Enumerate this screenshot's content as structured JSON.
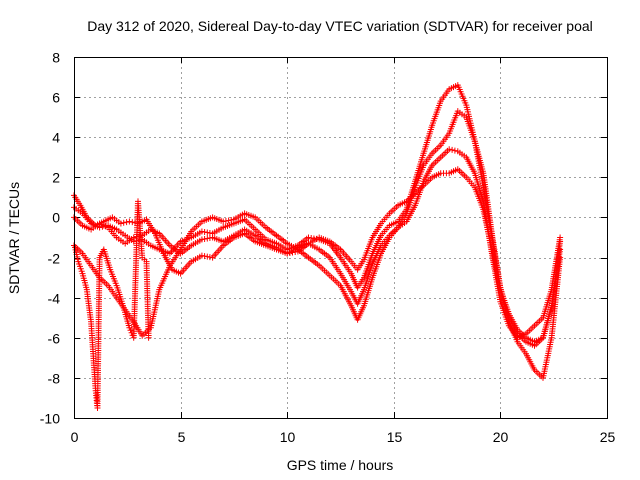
{
  "chart_data": {
    "type": "scatter",
    "title": "Day 312 of 2020, Sidereal Day-to-day VTEC variation (SDTVAR) for receiver poal",
    "xlabel": "GPS time / hours",
    "ylabel": "SDTVAR / TECUs",
    "xlim": [
      0,
      25
    ],
    "ylim": [
      -10,
      8
    ],
    "x_ticks": [
      0,
      5,
      10,
      15,
      20,
      25
    ],
    "y_ticks": [
      -10,
      -8,
      -6,
      -4,
      -2,
      0,
      2,
      4,
      6,
      8
    ],
    "grid": true,
    "marker": "plus",
    "color": "#ff0000",
    "series": [
      {
        "name": "track-a",
        "x": [
          0.0,
          0.3,
          0.6,
          1.0,
          1.4,
          1.8,
          2.2,
          2.6,
          3.0,
          3.4,
          3.8,
          4.2,
          4.6,
          5.0,
          5.5,
          6.0,
          6.5,
          7.0,
          7.5,
          8.0,
          8.5,
          9.0,
          9.5,
          10.0,
          10.5,
          11.0,
          11.5,
          12.0,
          12.5,
          13.0,
          13.3,
          13.6,
          14.0,
          14.4,
          14.8,
          15.2,
          15.6,
          16.0,
          16.4,
          16.8,
          17.2,
          17.6,
          18.0,
          18.4,
          18.8,
          19.2,
          19.6,
          20.0,
          20.4,
          20.8,
          21.2,
          21.6,
          22.0,
          22.4,
          22.8
        ],
        "y": [
          1.1,
          0.6,
          0.0,
          -0.4,
          -0.2,
          0.0,
          -0.3,
          -0.2,
          -0.3,
          -0.1,
          -0.8,
          -1.8,
          -2.6,
          -2.8,
          -2.2,
          -1.9,
          -2.0,
          -1.4,
          -1.0,
          -0.8,
          -1.2,
          -1.4,
          -1.6,
          -1.8,
          -1.5,
          -1.3,
          -1.6,
          -2.0,
          -2.8,
          -3.7,
          -4.3,
          -3.6,
          -2.3,
          -1.4,
          -0.9,
          -0.5,
          0.2,
          1.5,
          2.6,
          3.2,
          3.6,
          4.2,
          5.3,
          5.0,
          3.8,
          2.2,
          -0.8,
          -3.5,
          -5.0,
          -5.8,
          -6.2,
          -6.4,
          -6.0,
          -4.5,
          -1.6
        ]
      },
      {
        "name": "track-b",
        "x": [
          0.0,
          0.4,
          0.8,
          1.2,
          1.6,
          2.0,
          2.4,
          2.8,
          3.2,
          3.6,
          4.0,
          4.5,
          5.0,
          5.5,
          6.0,
          6.5,
          7.0,
          7.5,
          8.0,
          8.5,
          9.0,
          9.5,
          10.0,
          10.5,
          11.0,
          11.5,
          12.0,
          12.5,
          13.0,
          13.3,
          13.6,
          14.0,
          14.4,
          14.8,
          15.2,
          15.6,
          16.0,
          16.4,
          16.8,
          17.2,
          17.6,
          18.0,
          18.4,
          18.8,
          19.2,
          19.6,
          20.0,
          20.4,
          20.8,
          21.2,
          21.6,
          22.0,
          22.4,
          22.8
        ],
        "y": [
          0.5,
          0.2,
          -0.3,
          -0.5,
          -0.4,
          -0.6,
          -0.9,
          -1.2,
          -1.1,
          -1.4,
          -1.6,
          -1.8,
          -1.2,
          -1.0,
          -0.7,
          -0.8,
          -0.5,
          -0.3,
          -0.1,
          -0.6,
          -1.1,
          -1.3,
          -1.6,
          -1.4,
          -1.0,
          -1.1,
          -1.3,
          -2.0,
          -2.8,
          -3.5,
          -3.0,
          -1.8,
          -0.9,
          -0.4,
          -0.2,
          0.4,
          1.8,
          3.2,
          4.6,
          5.8,
          6.4,
          6.6,
          5.6,
          3.8,
          1.6,
          -1.0,
          -3.6,
          -5.2,
          -6.2,
          -6.8,
          -7.6,
          -8.0,
          -6.0,
          -2.0
        ]
      },
      {
        "name": "track-c",
        "x": [
          0.0,
          0.4,
          0.8,
          1.2,
          1.6,
          2.0,
          2.4,
          2.8,
          3.2,
          3.6,
          4.0,
          4.5,
          5.0,
          5.5,
          6.0,
          6.5,
          7.0,
          7.5,
          8.0,
          8.5,
          9.0,
          9.5,
          10.0,
          10.5,
          11.0,
          11.5,
          12.0,
          12.5,
          13.0,
          13.3,
          13.6,
          14.0,
          14.4,
          14.8,
          15.2,
          15.6,
          16.0,
          16.4,
          16.8,
          17.2,
          17.6,
          18.0,
          18.4,
          18.8,
          19.2,
          19.6,
          20.0,
          20.4,
          20.8,
          21.2,
          21.6,
          22.0,
          22.4,
          22.8
        ],
        "y": [
          -1.4,
          -1.8,
          -2.4,
          -3.0,
          -3.4,
          -4.0,
          -4.6,
          -5.2,
          -5.9,
          -5.5,
          -3.6,
          -2.4,
          -1.6,
          -0.7,
          -0.2,
          0.0,
          -0.2,
          -0.1,
          0.2,
          0.0,
          -0.5,
          -0.9,
          -1.3,
          -1.6,
          -2.0,
          -2.4,
          -2.9,
          -3.4,
          -4.4,
          -5.1,
          -4.4,
          -3.0,
          -1.8,
          -1.0,
          -0.5,
          -0.2,
          0.6,
          1.8,
          2.6,
          3.0,
          3.4,
          3.3,
          3.0,
          2.2,
          0.8,
          -1.8,
          -4.2,
          -5.4,
          -6.0,
          -5.8,
          -5.4,
          -5.0,
          -3.6,
          -1.0
        ]
      },
      {
        "name": "track-d",
        "x": [
          0.0,
          0.4,
          0.8,
          1.2,
          1.6,
          2.0,
          2.4,
          2.8,
          3.2,
          3.6,
          4.0,
          4.5,
          5.0,
          5.5,
          6.0,
          6.5,
          7.0,
          7.5,
          8.0,
          8.5,
          9.0,
          9.5,
          10.0,
          10.5,
          11.0,
          11.5,
          12.0,
          12.5,
          13.0,
          13.3,
          13.6,
          14.0,
          14.4,
          14.8,
          15.2,
          15.6,
          16.0,
          16.4,
          16.8,
          17.2,
          17.6,
          18.0,
          18.4,
          18.8,
          19.2,
          19.6,
          20.0,
          20.4,
          20.8,
          21.2,
          21.6,
          22.0,
          22.4,
          22.8
        ],
        "y": [
          0.0,
          -0.4,
          -0.6,
          -0.3,
          -0.5,
          -1.0,
          -1.3,
          -1.0,
          -0.9,
          -0.6,
          -0.8,
          -1.4,
          -1.8,
          -1.4,
          -1.1,
          -1.0,
          -1.2,
          -0.9,
          -0.6,
          -0.9,
          -1.3,
          -1.5,
          -1.8,
          -1.7,
          -1.3,
          -1.0,
          -1.2,
          -1.6,
          -2.2,
          -2.6,
          -2.1,
          -1.0,
          -0.3,
          0.2,
          0.6,
          0.8,
          1.2,
          1.6,
          2.0,
          2.2,
          2.2,
          2.4,
          2.0,
          1.5,
          0.4,
          -1.6,
          -3.6,
          -4.8,
          -5.6,
          -6.0,
          -6.2,
          -6.0,
          -4.4,
          -1.2
        ]
      },
      {
        "name": "track-e",
        "x": [
          0.05,
          0.2,
          0.4,
          0.6,
          0.7,
          0.8,
          0.85,
          0.9,
          0.95,
          1.0,
          1.05,
          1.1,
          1.2,
          1.4,
          1.7,
          2.0,
          2.3,
          2.6,
          2.8,
          3.0,
          3.2,
          3.4,
          3.5
        ],
        "y": [
          -1.5,
          -2.2,
          -2.8,
          -3.6,
          -4.4,
          -5.2,
          -6.0,
          -6.8,
          -7.6,
          -8.4,
          -9.0,
          -9.5,
          -2.0,
          -1.6,
          -2.6,
          -3.4,
          -4.4,
          -5.5,
          -6.0,
          0.8,
          -2.0,
          -2.2,
          -6.0
        ]
      }
    ]
  }
}
